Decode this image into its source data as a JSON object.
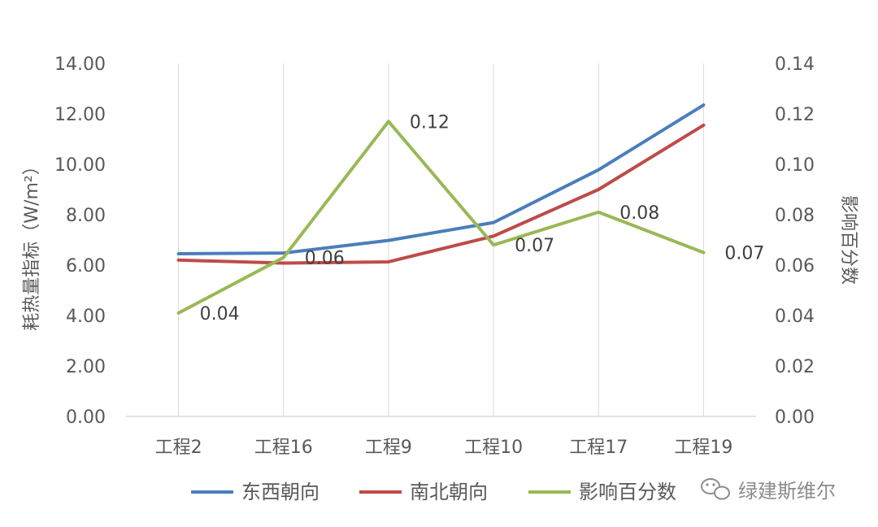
{
  "chart_data": {
    "type": "line",
    "categories": [
      "工程2",
      "工程16",
      "工程9",
      "工程10",
      "工程17",
      "工程19"
    ],
    "ylabel": "耗热量指标（W/m²）",
    "y2label": "影响百分数",
    "ylim": [
      0,
      14
    ],
    "yticks": [
      "0.00",
      "2.00",
      "4.00",
      "6.00",
      "8.00",
      "10.00",
      "12.00",
      "14.00"
    ],
    "y2lim": [
      0,
      0.14
    ],
    "y2ticks": [
      "0.00",
      "0.02",
      "0.04",
      "0.06",
      "0.08",
      "0.10",
      "0.12",
      "0.14"
    ],
    "legend_position": "bottom",
    "grid": "vertical",
    "series": [
      {
        "name": "东西朝向",
        "axis": "left",
        "color": "#4a7ebb",
        "values": [
          6.45,
          6.48,
          6.98,
          7.69,
          9.78,
          12.35
        ]
      },
      {
        "name": "南北朝向",
        "axis": "left",
        "color": "#be4b48",
        "values": [
          6.2,
          6.08,
          6.13,
          7.15,
          9.0,
          11.55
        ]
      },
      {
        "name": "影响百分数",
        "axis": "right",
        "color": "#98b954",
        "values": [
          0.041,
          0.063,
          0.117,
          0.068,
          0.081,
          0.065
        ],
        "labels": [
          "0.04",
          "0.06",
          "0.12",
          "0.07",
          "0.08",
          "0.07"
        ]
      }
    ]
  },
  "watermark": {
    "icon": "wechat-icon",
    "text": "绿建斯维尔"
  }
}
